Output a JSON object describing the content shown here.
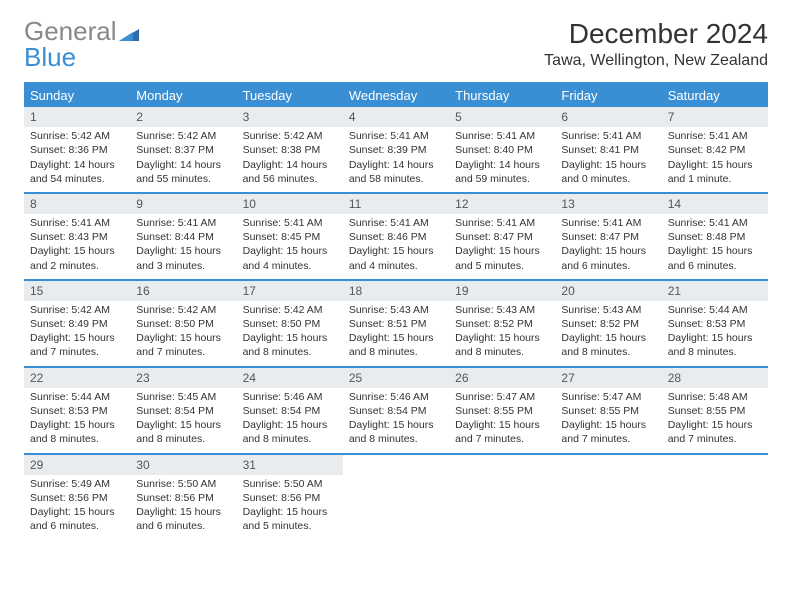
{
  "logo": {
    "line1": "General",
    "line2": "Blue"
  },
  "title": "December 2024",
  "location": "Tawa, Wellington, New Zealand",
  "colors": {
    "accent": "#3a8fd4",
    "header_text": "#ffffff",
    "daynum_bg": "#e9ecef",
    "text": "#333333",
    "logo_gray": "#888888"
  },
  "weekdays": [
    "Sunday",
    "Monday",
    "Tuesday",
    "Wednesday",
    "Thursday",
    "Friday",
    "Saturday"
  ],
  "days": [
    {
      "n": "1",
      "sr": "5:42 AM",
      "ss": "8:36 PM",
      "dl": "14 hours and 54 minutes."
    },
    {
      "n": "2",
      "sr": "5:42 AM",
      "ss": "8:37 PM",
      "dl": "14 hours and 55 minutes."
    },
    {
      "n": "3",
      "sr": "5:42 AM",
      "ss": "8:38 PM",
      "dl": "14 hours and 56 minutes."
    },
    {
      "n": "4",
      "sr": "5:41 AM",
      "ss": "8:39 PM",
      "dl": "14 hours and 58 minutes."
    },
    {
      "n": "5",
      "sr": "5:41 AM",
      "ss": "8:40 PM",
      "dl": "14 hours and 59 minutes."
    },
    {
      "n": "6",
      "sr": "5:41 AM",
      "ss": "8:41 PM",
      "dl": "15 hours and 0 minutes."
    },
    {
      "n": "7",
      "sr": "5:41 AM",
      "ss": "8:42 PM",
      "dl": "15 hours and 1 minute."
    },
    {
      "n": "8",
      "sr": "5:41 AM",
      "ss": "8:43 PM",
      "dl": "15 hours and 2 minutes."
    },
    {
      "n": "9",
      "sr": "5:41 AM",
      "ss": "8:44 PM",
      "dl": "15 hours and 3 minutes."
    },
    {
      "n": "10",
      "sr": "5:41 AM",
      "ss": "8:45 PM",
      "dl": "15 hours and 4 minutes."
    },
    {
      "n": "11",
      "sr": "5:41 AM",
      "ss": "8:46 PM",
      "dl": "15 hours and 4 minutes."
    },
    {
      "n": "12",
      "sr": "5:41 AM",
      "ss": "8:47 PM",
      "dl": "15 hours and 5 minutes."
    },
    {
      "n": "13",
      "sr": "5:41 AM",
      "ss": "8:47 PM",
      "dl": "15 hours and 6 minutes."
    },
    {
      "n": "14",
      "sr": "5:41 AM",
      "ss": "8:48 PM",
      "dl": "15 hours and 6 minutes."
    },
    {
      "n": "15",
      "sr": "5:42 AM",
      "ss": "8:49 PM",
      "dl": "15 hours and 7 minutes."
    },
    {
      "n": "16",
      "sr": "5:42 AM",
      "ss": "8:50 PM",
      "dl": "15 hours and 7 minutes."
    },
    {
      "n": "17",
      "sr": "5:42 AM",
      "ss": "8:50 PM",
      "dl": "15 hours and 8 minutes."
    },
    {
      "n": "18",
      "sr": "5:43 AM",
      "ss": "8:51 PM",
      "dl": "15 hours and 8 minutes."
    },
    {
      "n": "19",
      "sr": "5:43 AM",
      "ss": "8:52 PM",
      "dl": "15 hours and 8 minutes."
    },
    {
      "n": "20",
      "sr": "5:43 AM",
      "ss": "8:52 PM",
      "dl": "15 hours and 8 minutes."
    },
    {
      "n": "21",
      "sr": "5:44 AM",
      "ss": "8:53 PM",
      "dl": "15 hours and 8 minutes."
    },
    {
      "n": "22",
      "sr": "5:44 AM",
      "ss": "8:53 PM",
      "dl": "15 hours and 8 minutes."
    },
    {
      "n": "23",
      "sr": "5:45 AM",
      "ss": "8:54 PM",
      "dl": "15 hours and 8 minutes."
    },
    {
      "n": "24",
      "sr": "5:46 AM",
      "ss": "8:54 PM",
      "dl": "15 hours and 8 minutes."
    },
    {
      "n": "25",
      "sr": "5:46 AM",
      "ss": "8:54 PM",
      "dl": "15 hours and 8 minutes."
    },
    {
      "n": "26",
      "sr": "5:47 AM",
      "ss": "8:55 PM",
      "dl": "15 hours and 7 minutes."
    },
    {
      "n": "27",
      "sr": "5:47 AM",
      "ss": "8:55 PM",
      "dl": "15 hours and 7 minutes."
    },
    {
      "n": "28",
      "sr": "5:48 AM",
      "ss": "8:55 PM",
      "dl": "15 hours and 7 minutes."
    },
    {
      "n": "29",
      "sr": "5:49 AM",
      "ss": "8:56 PM",
      "dl": "15 hours and 6 minutes."
    },
    {
      "n": "30",
      "sr": "5:50 AM",
      "ss": "8:56 PM",
      "dl": "15 hours and 6 minutes."
    },
    {
      "n": "31",
      "sr": "5:50 AM",
      "ss": "8:56 PM",
      "dl": "15 hours and 5 minutes."
    }
  ],
  "labels": {
    "sunrise": "Sunrise:",
    "sunset": "Sunset:",
    "daylight": "Daylight:"
  },
  "layout": {
    "first_weekday_offset": 0,
    "total_cells": 35
  }
}
